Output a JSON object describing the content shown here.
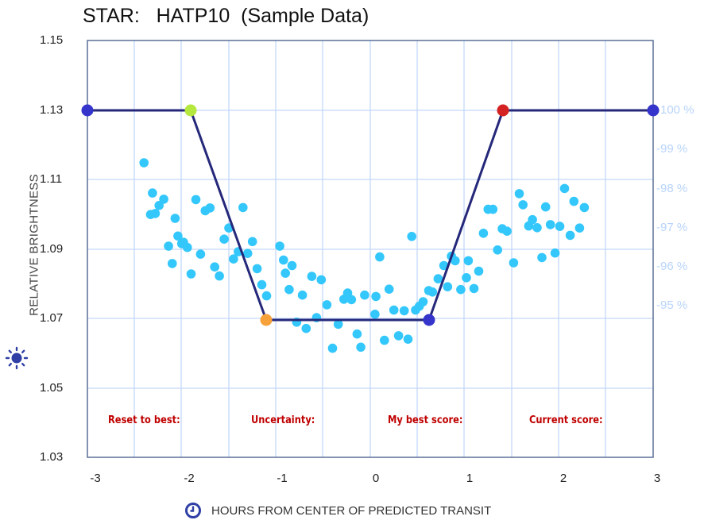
{
  "title": "STAR:   HATP10  (Sample Data)",
  "y_axis": {
    "label": "RELATIVE BRIGHTNESS",
    "icon": "sun-icon",
    "ticks": [
      "1.15",
      "1.13",
      "1.11",
      "1.09",
      "1.07",
      "1.05",
      "1.03"
    ]
  },
  "right_axis": {
    "ticks": [
      "-100 %",
      "-99 %",
      "-98 %",
      "-97 %",
      "-96 %",
      "-95 %"
    ]
  },
  "x_axis": {
    "label": "HOURS FROM CENTER OF PREDICTED TRANSIT",
    "icon": "clock-icon",
    "ticks": [
      "-3",
      "-2",
      "-1",
      "0",
      "1",
      "2",
      "3"
    ]
  },
  "score_labels": {
    "reset": "Reset to best:",
    "uncertainty": "Uncertainty:",
    "best": "My best score:",
    "current": "Current score:"
  },
  "colors": {
    "data_points": "#33c7fb",
    "model_line": "#25287a",
    "grid": "#c3d8fa",
    "axis": "#5a6f96",
    "handle_end": "#3535cc",
    "handle_ingress_start": "#b5e83e",
    "handle_ingress_end": "#f7a13a",
    "handle_egress_start": "#3535cc",
    "handle_egress_end": "#d42222",
    "score_label": "#c00000",
    "right_axis_text": "#b8d4fb"
  },
  "chart_data": {
    "type": "scatter",
    "title": "STAR:   HATP10  (Sample Data)",
    "xlabel": "HOURS FROM CENTER OF PREDICTED TRANSIT",
    "ylabel": "RELATIVE BRIGHTNESS",
    "xlim": [
      -3,
      3
    ],
    "ylim": [
      1.03,
      1.15
    ],
    "x_ticks": [
      -3,
      -2,
      -1,
      0,
      1,
      2,
      3
    ],
    "y_ticks": [
      1.03,
      1.05,
      1.07,
      1.09,
      1.11,
      1.13,
      1.15
    ],
    "right_axis_ticks": [
      "-100 %",
      "-99 %",
      "-98 %",
      "-97 %",
      "-96 %",
      "-95 %"
    ],
    "grid": true,
    "series": [
      {
        "name": "observations",
        "type": "scatter",
        "points": [
          [
            -2.4,
            1.1148
          ],
          [
            -2.31,
            1.1061
          ],
          [
            -2.33,
            1.0999
          ],
          [
            -2.28,
            1.1002
          ],
          [
            -2.24,
            1.1025
          ],
          [
            -2.19,
            1.1043
          ],
          [
            -2.14,
            1.0908
          ],
          [
            -2.1,
            1.0858
          ],
          [
            -2.07,
            1.0988
          ],
          [
            -2.04,
            1.0937
          ],
          [
            -2.0,
            1.0915
          ],
          [
            -1.98,
            1.0919
          ],
          [
            -1.94,
            1.0904
          ],
          [
            -1.9,
            1.0828
          ],
          [
            -1.85,
            1.1042
          ],
          [
            -1.8,
            1.0885
          ],
          [
            -1.75,
            1.101
          ],
          [
            -1.7,
            1.1018
          ],
          [
            -1.65,
            1.0848
          ],
          [
            -1.6,
            1.0822
          ],
          [
            -1.55,
            1.0928
          ],
          [
            -1.5,
            1.096
          ],
          [
            -1.45,
            1.0871
          ],
          [
            -1.4,
            1.0892
          ],
          [
            -1.35,
            1.1019
          ],
          [
            -1.3,
            1.0887
          ],
          [
            -1.25,
            1.0921
          ],
          [
            -1.2,
            1.0843
          ],
          [
            -1.15,
            1.0797
          ],
          [
            -1.1,
            1.0765
          ],
          [
            -0.96,
            1.0908
          ],
          [
            -0.92,
            1.0868
          ],
          [
            -0.9,
            1.083
          ],
          [
            -0.86,
            1.0783
          ],
          [
            -0.83,
            1.0852
          ],
          [
            -0.78,
            1.0689
          ],
          [
            -0.72,
            1.0767
          ],
          [
            -0.68,
            1.0671
          ],
          [
            -0.62,
            1.0821
          ],
          [
            -0.57,
            1.0702
          ],
          [
            -0.52,
            1.0811
          ],
          [
            -0.46,
            1.0739
          ],
          [
            -0.4,
            1.0614
          ],
          [
            -0.34,
            1.0683
          ],
          [
            -0.28,
            1.0755
          ],
          [
            -0.24,
            1.0773
          ],
          [
            -0.2,
            1.0754
          ],
          [
            -0.14,
            1.0655
          ],
          [
            -0.1,
            1.0617
          ],
          [
            -0.06,
            1.0767
          ],
          [
            0.05,
            1.0712
          ],
          [
            0.06,
            1.0763
          ],
          [
            0.1,
            1.0877
          ],
          [
            0.15,
            1.0637
          ],
          [
            0.2,
            1.0784
          ],
          [
            0.25,
            1.0724
          ],
          [
            0.3,
            1.065
          ],
          [
            0.36,
            1.0722
          ],
          [
            0.4,
            1.064
          ],
          [
            0.44,
            1.0936
          ],
          [
            0.48,
            1.0724
          ],
          [
            0.52,
            1.0735
          ],
          [
            0.56,
            1.0748
          ],
          [
            0.62,
            1.078
          ],
          [
            0.66,
            1.0776
          ],
          [
            0.72,
            1.0814
          ],
          [
            0.78,
            1.0852
          ],
          [
            0.82,
            1.0791
          ],
          [
            0.86,
            1.0879
          ],
          [
            0.9,
            1.0866
          ],
          [
            0.96,
            1.0783
          ],
          [
            1.02,
            1.0817
          ],
          [
            1.04,
            1.0866
          ],
          [
            1.1,
            1.0786
          ],
          [
            1.15,
            1.0836
          ],
          [
            1.2,
            1.0945
          ],
          [
            1.25,
            1.1014
          ],
          [
            1.3,
            1.1014
          ],
          [
            1.35,
            1.0897
          ],
          [
            1.4,
            1.0958
          ],
          [
            1.45,
            1.0951
          ],
          [
            1.52,
            1.086
          ],
          [
            1.58,
            1.1059
          ],
          [
            1.62,
            1.1027
          ],
          [
            1.68,
            1.0966
          ],
          [
            1.72,
            1.0984
          ],
          [
            1.77,
            1.0961
          ],
          [
            1.82,
            1.0875
          ],
          [
            1.86,
            1.1021
          ],
          [
            1.91,
            1.097
          ],
          [
            1.96,
            1.0888
          ],
          [
            2.01,
            1.0965
          ],
          [
            2.06,
            1.1074
          ],
          [
            2.12,
            1.0939
          ],
          [
            2.16,
            1.1037
          ],
          [
            2.22,
            1.096
          ],
          [
            2.27,
            1.1019
          ]
        ]
      },
      {
        "name": "transit model",
        "type": "line",
        "points": [
          [
            -3.0,
            1.13
          ],
          [
            -1.94,
            1.13
          ],
          [
            -1.17,
            1.069
          ],
          [
            0.57,
            1.069
          ],
          [
            1.35,
            1.13
          ],
          [
            3.0,
            1.13
          ]
        ]
      }
    ],
    "annotations": [
      "Reset to best:",
      "Uncertainty:",
      "My best score:",
      "Current score:"
    ]
  }
}
